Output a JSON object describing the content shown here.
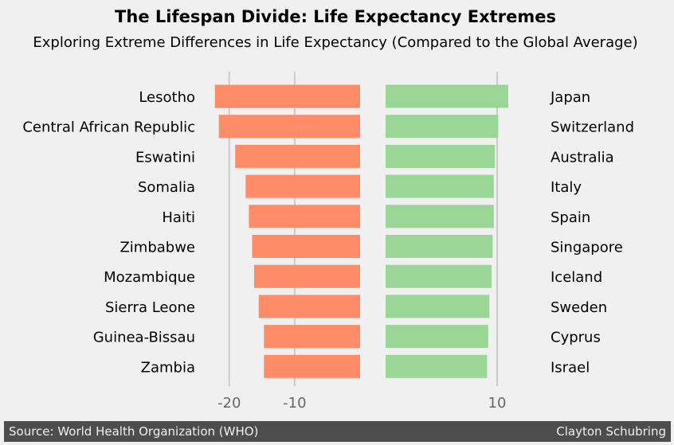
{
  "chart_data": {
    "type": "bar",
    "orientation": "horizontal-diverging",
    "title": "The Lifespan Divide: Life Expectancy Extremes",
    "subtitle": "Exploring Extreme Differences in Life Expectancy (Compared to the Global Average)",
    "grid": true,
    "colors": {
      "negative": "#ff8c69",
      "positive": "#9ad695",
      "background": "#f0f0f0",
      "grid": "#cbcbcb"
    },
    "left": {
      "categories": [
        "Lesotho",
        "Central African Republic",
        "Eswatini",
        "Somalia",
        "Haiti",
        "Zimbabwe",
        "Mozambique",
        "Sierra Leone",
        "Guinea-Bissau",
        "Zambia"
      ],
      "values": [
        -22.2,
        -21.6,
        -19.1,
        -17.5,
        -17.0,
        -16.5,
        -16.2,
        -15.5,
        -14.7,
        -14.7
      ],
      "xlim": [
        -24.6,
        0
      ],
      "ticks": [
        -20,
        -10
      ]
    },
    "right": {
      "categories": [
        "Japan",
        "Switzerland",
        "Australia",
        "Italy",
        "Spain",
        "Singapore",
        "Iceland",
        "Sweden",
        "Cyprus",
        "Israel"
      ],
      "values": [
        11.0,
        10.1,
        9.8,
        9.7,
        9.7,
        9.6,
        9.5,
        9.3,
        9.2,
        9.1
      ],
      "xlim": [
        0,
        14
      ],
      "ticks": [
        10
      ]
    }
  },
  "footer": {
    "source": "Source: World Health Organization (WHO)",
    "author": "Clayton Schubring"
  }
}
